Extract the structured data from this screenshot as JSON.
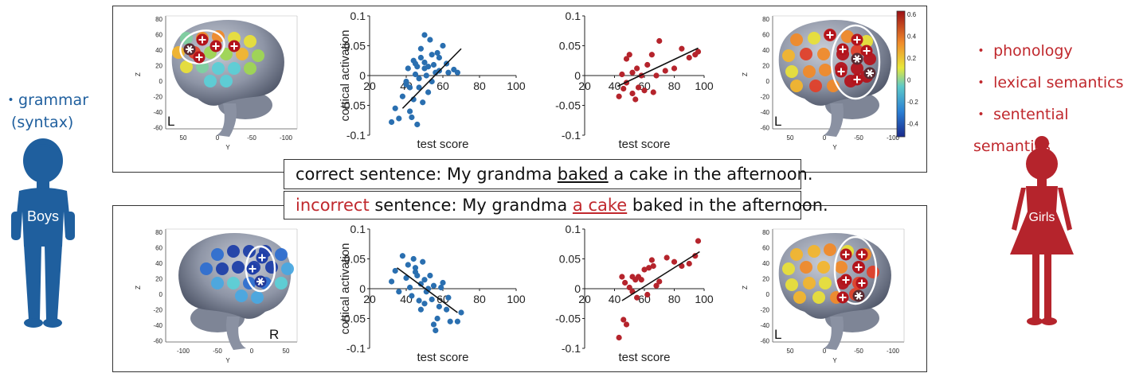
{
  "left_side": {
    "bullet": "・",
    "label_line1": "grammar",
    "label_line2": "(syntax)",
    "figure_label": "Boys",
    "color": "#1f5f9e"
  },
  "right_side": {
    "bullets": [
      "・",
      "・",
      "・"
    ],
    "labels": [
      "phonology",
      "lexical semantics",
      "sentential semantics"
    ],
    "figure_label": "Girls",
    "color": "#b5242c"
  },
  "sentences": {
    "correct": {
      "prefix": "correct sentence: My grandma ",
      "underlined": "baked",
      "suffix": " a cake in the afternoon."
    },
    "incorrect": {
      "highlight": "incorrect",
      "middle": " sentence: My grandma ",
      "underlined": "a cake",
      "suffix": " baked in the afternoon."
    }
  },
  "brains": {
    "z_label": "Z",
    "y_label": "Y",
    "top_left": {
      "hemisphere": "L",
      "z_ticks": [
        "80",
        "60",
        "40",
        "20",
        "0",
        "-20",
        "-40",
        "-60"
      ],
      "y_ticks": [
        "50",
        "0",
        "-50",
        "-100"
      ]
    },
    "top_right": {
      "hemisphere": "L",
      "z_ticks": [
        "80",
        "60",
        "40",
        "20",
        "0",
        "-20",
        "-40",
        "-60"
      ],
      "y_ticks": [
        "50",
        "0",
        "-50",
        "-100"
      ]
    },
    "bottom_left": {
      "hemisphere": "R",
      "z_ticks": [
        "80",
        "60",
        "40",
        "20",
        "0",
        "-20",
        "-40",
        "-60"
      ],
      "y_ticks": [
        "-100",
        "-50",
        "0",
        "50"
      ]
    },
    "bottom_right": {
      "hemisphere": "L",
      "z_ticks": [
        "80",
        "60",
        "40",
        "20",
        "0",
        "-20",
        "-40",
        "-60"
      ],
      "y_ticks": [
        "50",
        "0",
        "-50",
        "-100"
      ]
    }
  },
  "colorbar": {
    "ticks": [
      "0.6",
      "0.4",
      "0.2",
      "0",
      "-0.2",
      "-0.4"
    ]
  },
  "chart_data": [
    {
      "type": "scatter",
      "xlabel": "test score",
      "ylabel": "cortical activation",
      "xticks": [
        "20",
        "40",
        "60",
        "80",
        "100"
      ],
      "yticks": [
        "0.1",
        "0.05",
        "0",
        "-0.05",
        "-0.1"
      ],
      "xlim": [
        20,
        100
      ],
      "ylim": [
        -0.1,
        0.1
      ],
      "color": "#2a6fb0",
      "x": [
        32,
        34,
        36,
        38,
        40,
        41,
        42,
        43,
        44,
        44,
        45,
        46,
        46,
        47,
        48,
        48,
        49,
        50,
        50,
        51,
        52,
        52,
        53,
        54,
        55,
        56,
        57,
        58,
        60,
        62,
        63,
        66,
        68,
        40,
        42,
        45,
        47,
        50,
        54,
        58
      ],
      "y": [
        -0.078,
        -0.055,
        -0.072,
        -0.035,
        -0.01,
        0.012,
        -0.06,
        -0.07,
        0.025,
        -0.04,
        0.002,
        0.015,
        -0.082,
        -0.02,
        0.045,
        0.03,
        -0.045,
        0.068,
        0.022,
        0.0,
        0.015,
        -0.028,
        0.06,
        0.035,
        0.018,
        0.005,
        0.038,
        0.03,
        0.05,
        0.02,
        0.005,
        0.01,
        0.005,
        -0.015,
        -0.02,
        0.02,
        -0.005,
        0.012,
        -0.01,
        0.008
      ],
      "fit": [
        [
          38,
          -0.055
        ],
        [
          70,
          0.045
        ]
      ]
    },
    {
      "type": "scatter",
      "xlabel": "test score",
      "xticks": [
        "20",
        "40",
        "60",
        "80",
        "100"
      ],
      "yticks": [
        "0.1",
        "0.05",
        "0",
        "-0.05",
        "-0.1"
      ],
      "xlim": [
        20,
        100
      ],
      "ylim": [
        -0.1,
        0.1
      ],
      "color": "#b5242c",
      "x": [
        43,
        45,
        46,
        48,
        50,
        52,
        54,
        55,
        56,
        58,
        60,
        62,
        65,
        66,
        68,
        70,
        74,
        80,
        85,
        90,
        94,
        96,
        48,
        52
      ],
      "y": [
        -0.035,
        0.002,
        -0.022,
        0.028,
        0.035,
        -0.03,
        -0.04,
        0.012,
        -0.02,
        0.0,
        -0.025,
        0.018,
        0.035,
        -0.028,
        0.0,
        0.058,
        0.008,
        0.012,
        0.045,
        0.03,
        0.035,
        0.04,
        -0.012,
        0.005
      ],
      "fit": [
        [
          42,
          -0.018
        ],
        [
          96,
          0.046
        ]
      ]
    },
    {
      "type": "scatter",
      "xlabel": "test score",
      "ylabel": "cortical activation",
      "xticks": [
        "20",
        "40",
        "60",
        "80",
        "100"
      ],
      "yticks": [
        "0.1",
        "0.05",
        "0",
        "-0.05",
        "-0.1"
      ],
      "xlim": [
        20,
        100
      ],
      "ylim": [
        -0.1,
        0.1
      ],
      "color": "#2a6fb0",
      "x": [
        32,
        34,
        36,
        38,
        40,
        41,
        42,
        43,
        44,
        45,
        46,
        47,
        48,
        48,
        49,
        50,
        51,
        52,
        53,
        54,
        55,
        56,
        57,
        58,
        59,
        60,
        62,
        63,
        64,
        68,
        70,
        45,
        50,
        55
      ],
      "y": [
        0.012,
        0.03,
        -0.005,
        0.055,
        0.018,
        0.04,
        0.002,
        -0.012,
        0.05,
        0.028,
        0.022,
        -0.02,
        0.008,
        -0.035,
        0.045,
        0.015,
        -0.005,
        0.0,
        0.022,
        -0.018,
        -0.06,
        -0.07,
        -0.05,
        -0.03,
        0.002,
        0.01,
        -0.035,
        -0.015,
        -0.055,
        -0.055,
        -0.04,
        0.035,
        -0.025,
        0.005
      ],
      "fit": [
        [
          35,
          0.035
        ],
        [
          68,
          -0.04
        ]
      ]
    },
    {
      "type": "scatter",
      "xlabel": "test score",
      "xticks": [
        "20",
        "40",
        "60",
        "80",
        "100"
      ],
      "yticks": [
        "0.1",
        "0.05",
        "0",
        "-0.05",
        "-0.1"
      ],
      "xlim": [
        20,
        100
      ],
      "ylim": [
        -0.1,
        0.1
      ],
      "color": "#b5242c",
      "x": [
        43,
        45,
        46,
        48,
        50,
        52,
        54,
        55,
        56,
        58,
        60,
        62,
        63,
        65,
        66,
        68,
        70,
        75,
        80,
        85,
        90,
        94,
        96,
        47,
        52
      ],
      "y": [
        -0.082,
        0.02,
        -0.052,
        -0.06,
        0.002,
        0.02,
        0.015,
        -0.015,
        0.02,
        0.015,
        0.032,
        -0.01,
        0.035,
        0.048,
        0.038,
        0.005,
        0.012,
        0.052,
        0.045,
        0.038,
        0.042,
        0.055,
        0.08,
        0.01,
        -0.005
      ],
      "fit": [
        [
          45,
          -0.02
        ],
        [
          97,
          0.062
        ]
      ]
    }
  ]
}
